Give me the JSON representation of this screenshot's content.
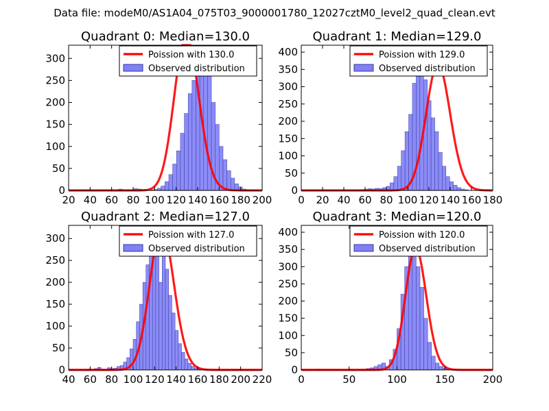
{
  "figure": {
    "suptitle": "Data file: modeM0/AS1A04_075T03_9000001780_12027cztM0_level2_quad_clean.evt"
  },
  "colors": {
    "hist_fill": "#7f7ff7",
    "hist_edge": "#3a3a9a",
    "fit_line": "#ff0000",
    "axes": "#000000"
  },
  "chart_data": [
    {
      "type": "bar",
      "title": "Quadrant 0: Median=130.0",
      "xlim": [
        20,
        200
      ],
      "ylim": [
        0,
        330
      ],
      "xticks": [
        "20",
        "40",
        "60",
        "80",
        "100",
        "120",
        "140",
        "160",
        "180",
        "200"
      ],
      "yticks": [
        "0",
        "50",
        "100",
        "150",
        "200",
        "250",
        "300"
      ],
      "legend": {
        "position": "top-right",
        "fit_label": "Poission with 130.0",
        "hist_label": "Observed distribution"
      },
      "fit_mean": 130.0,
      "hist": {
        "bin_start": 34,
        "bin_width": 3.6,
        "values": [
          1,
          0,
          0,
          0,
          0,
          0,
          0,
          0,
          0,
          3,
          0,
          2,
          0,
          4,
          3,
          2,
          1,
          1,
          2,
          5,
          10,
          20,
          36,
          60,
          90,
          130,
          175,
          220,
          250,
          300,
          315,
          295,
          260,
          200,
          150,
          100,
          70,
          45,
          28,
          15,
          8,
          3,
          2,
          1,
          1,
          0
        ]
      }
    },
    {
      "type": "bar",
      "title": "Quadrant 1: Median=129.0",
      "xlim": [
        0,
        180
      ],
      "ylim": [
        0,
        420
      ],
      "xticks": [
        "0",
        "20",
        "40",
        "60",
        "80",
        "100",
        "120",
        "140",
        "160",
        "180"
      ],
      "yticks": [
        "0",
        "50",
        "100",
        "150",
        "200",
        "250",
        "300",
        "350",
        "400"
      ],
      "legend": {
        "position": "top-right",
        "fit_label": "Poission with 129.0",
        "hist_label": "Observed distribution"
      },
      "fit_mean": 129.0,
      "hist": {
        "bin_start": 17,
        "bin_width": 3.5,
        "values": [
          1,
          0,
          0,
          0,
          0,
          0,
          0,
          0,
          0,
          0,
          1,
          2,
          3,
          5,
          4,
          6,
          5,
          8,
          12,
          22,
          40,
          70,
          115,
          170,
          220,
          310,
          330,
          410,
          320,
          260,
          210,
          170,
          110,
          70,
          40,
          25,
          15,
          8,
          4,
          2
        ]
      }
    },
    {
      "type": "bar",
      "title": "Quadrant 2: Median=127.0",
      "xlim": [
        40,
        220
      ],
      "ylim": [
        0,
        330
      ],
      "xticks": [
        "40",
        "60",
        "80",
        "100",
        "120",
        "140",
        "160",
        "180",
        "200",
        "220"
      ],
      "yticks": [
        "0",
        "50",
        "100",
        "150",
        "200",
        "250",
        "300"
      ],
      "legend": {
        "position": "top-right",
        "fit_label": "Poission with 127.0",
        "hist_label": "Observed distribution"
      },
      "fit_mean": 127.0,
      "hist": {
        "bin_start": 58,
        "bin_width": 3.0,
        "values": [
          2,
          0,
          3,
          6,
          2,
          1,
          5,
          3,
          4,
          8,
          10,
          18,
          28,
          48,
          70,
          110,
          150,
          200,
          240,
          280,
          320,
          300,
          200,
          270,
          230,
          170,
          130,
          90,
          60,
          40,
          25,
          15,
          8,
          4,
          2,
          1,
          1,
          0,
          0,
          0,
          0,
          0,
          0,
          0,
          0,
          1,
          1
        ]
      }
    },
    {
      "type": "bar",
      "title": "Quadrant 3: Median=120.0",
      "xlim": [
        0,
        200
      ],
      "ylim": [
        0,
        420
      ],
      "xticks": [
        "0",
        "50",
        "100",
        "150",
        "200"
      ],
      "yticks": [
        "0",
        "50",
        "100",
        "150",
        "200",
        "250",
        "300",
        "350",
        "400"
      ],
      "legend": {
        "position": "top-right",
        "fit_label": "Poission with 120.0",
        "hist_label": "Observed distribution"
      },
      "fit_mean": 120.0,
      "hist": {
        "bin_start": 16,
        "bin_width": 4.0,
        "values": [
          2,
          0,
          0,
          0,
          0,
          0,
          0,
          0,
          0,
          0,
          0,
          0,
          2,
          4,
          6,
          10,
          15,
          20,
          10,
          30,
          60,
          120,
          220,
          300,
          400,
          380,
          300,
          240,
          150,
          80,
          40,
          20,
          10,
          5,
          3,
          2,
          1,
          0,
          0,
          0,
          0,
          0,
          0
        ]
      }
    }
  ]
}
